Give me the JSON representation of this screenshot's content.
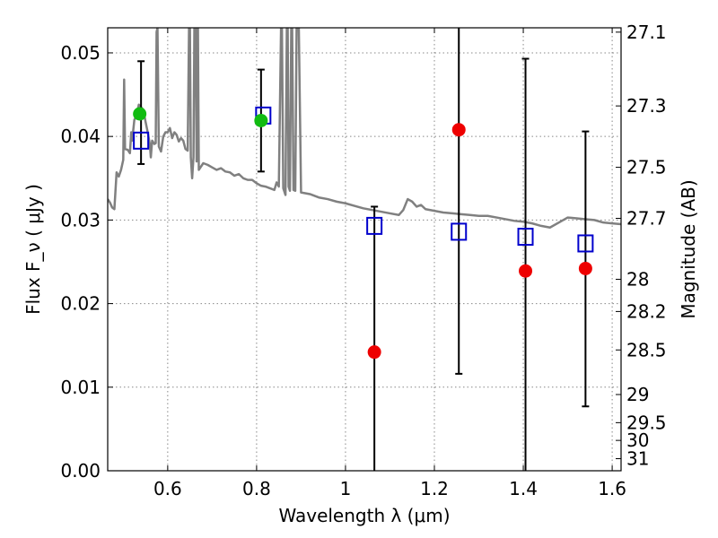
{
  "chart_data": {
    "type": "scatter",
    "xlabel": "Wavelength  λ (μm)",
    "ylabel": "Flux  F_ν ( μJy )",
    "y2label": "Magnitude (AB)",
    "xlim": [
      0.465,
      1.62
    ],
    "ylim": [
      0.0,
      0.053
    ],
    "x_ticks": [
      0.6,
      0.8,
      1.0,
      1.2,
      1.4,
      1.6
    ],
    "x_tick_labels": [
      "0.6",
      "0.8",
      "1",
      "1.2",
      "1.4",
      "1.6"
    ],
    "y_ticks": [
      0.0,
      0.01,
      0.02,
      0.03,
      0.04,
      0.05
    ],
    "y_tick_labels": [
      "0.00",
      "0.01",
      "0.02",
      "0.03",
      "0.04",
      "0.05"
    ],
    "y2_ticks": [
      {
        "label": "27.1",
        "mag": 27.1
      },
      {
        "label": "27.3",
        "mag": 27.3
      },
      {
        "label": "27.5",
        "mag": 27.5
      },
      {
        "label": "27.7",
        "mag": 27.7
      },
      {
        "label": "28",
        "mag": 28.0
      },
      {
        "label": "28.2",
        "mag": 28.2
      },
      {
        "label": "28.5",
        "mag": 28.5
      },
      {
        "label": "29",
        "mag": 29.0
      },
      {
        "label": "29.5",
        "mag": 29.5
      },
      {
        "label": "30",
        "mag": 30.0
      },
      {
        "label": "31",
        "mag": 31.0
      }
    ],
    "grid": true,
    "colors": {
      "model_line": "#808080",
      "model_points": "#0000cc",
      "green_points": "#11bb11",
      "red_points": "#ee0000",
      "errorbars": "#000000",
      "gridlines": "#888888"
    },
    "series": [
      {
        "style": "line",
        "color_key": "model_line",
        "points": [
          [
            0.465,
            0.0325
          ],
          [
            0.47,
            0.0321
          ],
          [
            0.475,
            0.0315
          ],
          [
            0.48,
            0.0313
          ],
          [
            0.485,
            0.0357
          ],
          [
            0.49,
            0.0352
          ],
          [
            0.495,
            0.036
          ],
          [
            0.5,
            0.0372
          ],
          [
            0.502,
            0.0468
          ],
          [
            0.504,
            0.0385
          ],
          [
            0.51,
            0.0384
          ],
          [
            0.515,
            0.038
          ],
          [
            0.518,
            0.0405
          ],
          [
            0.52,
            0.0395
          ],
          [
            0.525,
            0.042
          ],
          [
            0.53,
            0.0425
          ],
          [
            0.535,
            0.0438
          ],
          [
            0.54,
            0.0435
          ],
          [
            0.545,
            0.0432
          ],
          [
            0.55,
            0.0418
          ],
          [
            0.555,
            0.0405
          ],
          [
            0.56,
            0.039
          ],
          [
            0.562,
            0.0375
          ],
          [
            0.565,
            0.0395
          ],
          [
            0.57,
            0.0391
          ],
          [
            0.573,
            0.0392
          ],
          [
            0.575,
            0.0525
          ],
          [
            0.577,
            0.053
          ],
          [
            0.58,
            0.0388
          ],
          [
            0.585,
            0.0382
          ],
          [
            0.59,
            0.04
          ],
          [
            0.595,
            0.0405
          ],
          [
            0.6,
            0.0405
          ],
          [
            0.605,
            0.041
          ],
          [
            0.61,
            0.0398
          ],
          [
            0.615,
            0.0405
          ],
          [
            0.62,
            0.0402
          ],
          [
            0.625,
            0.0394
          ],
          [
            0.63,
            0.0398
          ],
          [
            0.635,
            0.0395
          ],
          [
            0.64,
            0.0385
          ],
          [
            0.645,
            0.0383
          ],
          [
            0.648,
            0.053
          ],
          [
            0.65,
            0.053
          ],
          [
            0.652,
            0.0375
          ],
          [
            0.655,
            0.035
          ],
          [
            0.658,
            0.0375
          ],
          [
            0.66,
            0.053
          ],
          [
            0.663,
            0.053
          ],
          [
            0.665,
            0.037
          ],
          [
            0.668,
            0.053
          ],
          [
            0.67,
            0.036
          ],
          [
            0.68,
            0.0368
          ],
          [
            0.69,
            0.0366
          ],
          [
            0.7,
            0.0363
          ],
          [
            0.71,
            0.036
          ],
          [
            0.72,
            0.0362
          ],
          [
            0.73,
            0.0358
          ],
          [
            0.74,
            0.0357
          ],
          [
            0.75,
            0.0353
          ],
          [
            0.76,
            0.0355
          ],
          [
            0.77,
            0.035
          ],
          [
            0.78,
            0.0348
          ],
          [
            0.79,
            0.0348
          ],
          [
            0.8,
            0.0344
          ],
          [
            0.81,
            0.0341
          ],
          [
            0.82,
            0.034
          ],
          [
            0.83,
            0.0338
          ],
          [
            0.84,
            0.0336
          ],
          [
            0.845,
            0.0345
          ],
          [
            0.85,
            0.034
          ],
          [
            0.855,
            0.053
          ],
          [
            0.857,
            0.053
          ],
          [
            0.86,
            0.0338
          ],
          [
            0.865,
            0.033
          ],
          [
            0.868,
            0.053
          ],
          [
            0.87,
            0.053
          ],
          [
            0.872,
            0.034
          ],
          [
            0.875,
            0.0335
          ],
          [
            0.878,
            0.053
          ],
          [
            0.88,
            0.053
          ],
          [
            0.883,
            0.0336
          ],
          [
            0.887,
            0.0335
          ],
          [
            0.89,
            0.053
          ],
          [
            0.895,
            0.053
          ],
          [
            0.9,
            0.0333
          ],
          [
            0.92,
            0.0331
          ],
          [
            0.94,
            0.0327
          ],
          [
            0.96,
            0.0325
          ],
          [
            0.98,
            0.0322
          ],
          [
            1.0,
            0.032
          ],
          [
            1.02,
            0.0317
          ],
          [
            1.04,
            0.0314
          ],
          [
            1.06,
            0.0312
          ],
          [
            1.08,
            0.031
          ],
          [
            1.1,
            0.0308
          ],
          [
            1.12,
            0.0306
          ],
          [
            1.13,
            0.0312
          ],
          [
            1.14,
            0.0325
          ],
          [
            1.15,
            0.0322
          ],
          [
            1.16,
            0.0316
          ],
          [
            1.17,
            0.0318
          ],
          [
            1.18,
            0.0313
          ],
          [
            1.2,
            0.0311
          ],
          [
            1.22,
            0.0309
          ],
          [
            1.24,
            0.0308
          ],
          [
            1.26,
            0.0307
          ],
          [
            1.28,
            0.0306
          ],
          [
            1.3,
            0.0305
          ],
          [
            1.32,
            0.0305
          ],
          [
            1.34,
            0.0303
          ],
          [
            1.36,
            0.0301
          ],
          [
            1.38,
            0.0299
          ],
          [
            1.4,
            0.0298
          ],
          [
            1.42,
            0.0296
          ],
          [
            1.44,
            0.0293
          ],
          [
            1.46,
            0.0291
          ],
          [
            1.48,
            0.0297
          ],
          [
            1.5,
            0.0303
          ],
          [
            1.52,
            0.0302
          ],
          [
            1.54,
            0.0301
          ],
          [
            1.56,
            0.03
          ],
          [
            1.58,
            0.0297
          ],
          [
            1.6,
            0.0296
          ],
          [
            1.62,
            0.0295
          ]
        ]
      },
      {
        "style": "open-square",
        "color_key": "model_points",
        "points": [
          [
            0.54,
            0.0395
          ],
          [
            0.815,
            0.0425
          ],
          [
            1.065,
            0.0293
          ],
          [
            1.255,
            0.0286
          ],
          [
            1.405,
            0.028
          ],
          [
            1.54,
            0.0272
          ]
        ]
      },
      {
        "style": "filled-circle",
        "color_key": "green_points",
        "points": [
          [
            0.537,
            0.0427
          ],
          [
            0.81,
            0.0419
          ]
        ]
      },
      {
        "style": "filled-circle",
        "color_key": "red_points",
        "points": [
          [
            1.065,
            0.0142
          ],
          [
            1.255,
            0.0408
          ],
          [
            1.405,
            0.0239
          ],
          [
            1.54,
            0.0242
          ]
        ]
      }
    ],
    "errorbars": [
      {
        "x": 0.54,
        "low": 0.0367,
        "high": 0.049
      },
      {
        "x": 0.81,
        "low": 0.0358,
        "high": 0.048
      },
      {
        "x": 1.065,
        "low": 0.0,
        "high": 0.0316
      },
      {
        "x": 1.255,
        "low": 0.0116,
        "high": 0.053
      },
      {
        "x": 1.405,
        "low": 0.0,
        "high": 0.0493
      },
      {
        "x": 1.54,
        "low": 0.0077,
        "high": 0.0406
      }
    ]
  }
}
